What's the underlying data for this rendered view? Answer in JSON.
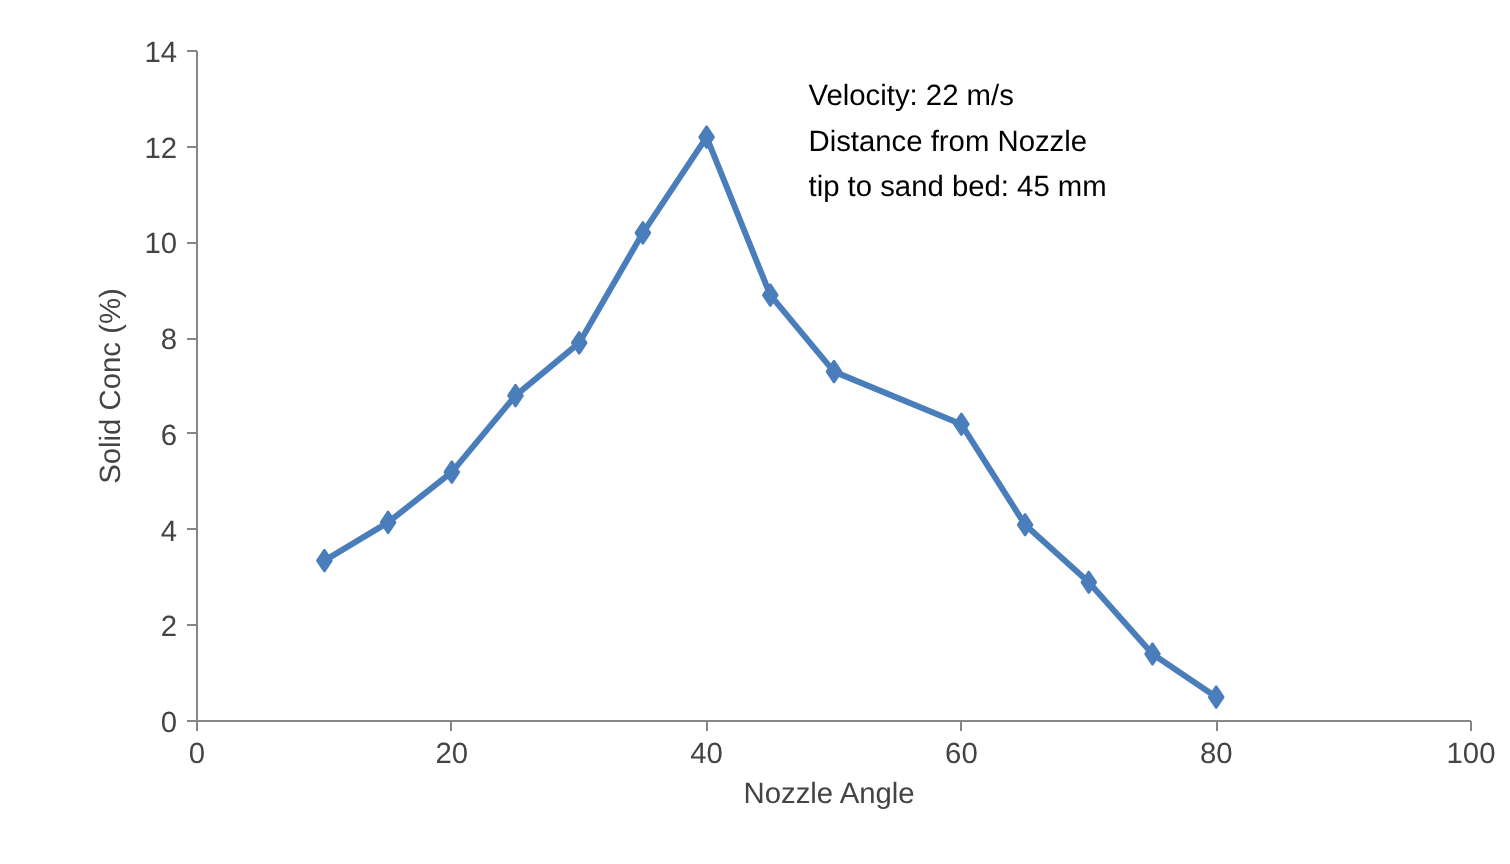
{
  "chart_data": {
    "type": "line",
    "xlabel": "Nozzle  Angle",
    "ylabel": "Solid Conc (%)",
    "x": [
      10,
      15,
      20,
      25,
      30,
      35,
      40,
      45,
      50,
      60,
      65,
      70,
      75,
      80
    ],
    "series": [
      {
        "color": "#4a7ebb",
        "values": [
          3.35,
          4.15,
          5.2,
          6.8,
          7.9,
          10.2,
          12.2,
          8.9,
          7.3,
          6.2,
          4.1,
          2.9,
          1.4,
          0.5
        ]
      }
    ],
    "xlim": [
      0,
      100
    ],
    "xticks": [
      0,
      20,
      40,
      60,
      80,
      100
    ],
    "ylim": [
      0,
      14
    ],
    "yticks": [
      0,
      2,
      4,
      6,
      8,
      10,
      12,
      14
    ],
    "grid": false,
    "marker": "diamond",
    "line_style": "solid",
    "annotations": [
      "Velocity: 22 m/s",
      "Distance from Nozzle tip to sand bed: 45 mm"
    ]
  }
}
